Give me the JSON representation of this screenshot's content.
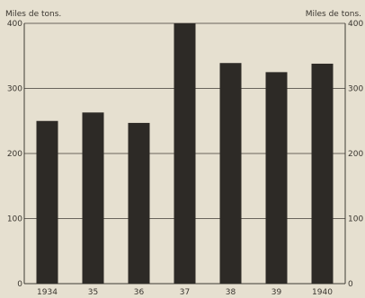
{
  "chart_data": {
    "type": "bar",
    "categories": [
      "1934",
      "35",
      "36",
      "37",
      "38",
      "39",
      "1940"
    ],
    "values": [
      250,
      263,
      247,
      400,
      339,
      325,
      338
    ],
    "ylabel_left": "Miles de tons.",
    "ylabel_right": "Miles de tons.",
    "ylim": [
      0,
      400
    ],
    "yticks": [
      0,
      100,
      200,
      300,
      400
    ],
    "left_tick_labels": [
      "0",
      "100",
      "200",
      "300",
      "400"
    ],
    "right_tick_labels": [
      "0",
      "100",
      "200",
      "300",
      "400"
    ],
    "grid": true,
    "bar_color": "#2d2a26",
    "background_color": "#e6e0d0",
    "grid_color": "#3f3b35"
  }
}
